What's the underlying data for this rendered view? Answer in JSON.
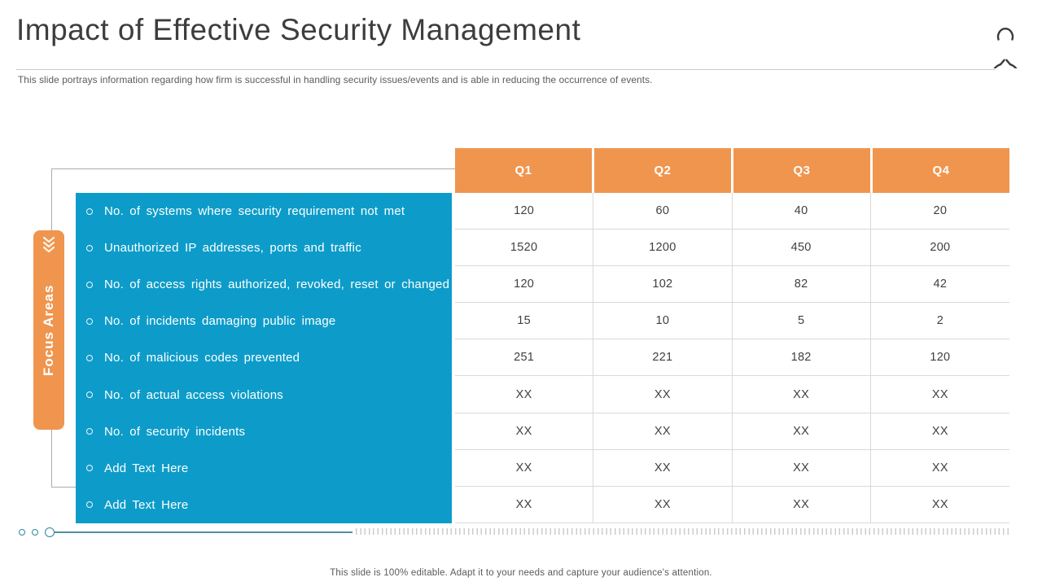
{
  "slide": {
    "title": "Impact of Effective Security Management",
    "subtitle": "This slide portrays information regarding how firm is successful in handling security issues/events and is able in reducing the occurrence of events.",
    "footer_note": "This slide is 100% editable. Adapt it to your needs and capture your audience's attention."
  },
  "focus_panel": {
    "tab_label": "Focus Areas"
  },
  "icons": {
    "top_right": "padlock-outline-icon",
    "tab_top": "triple-chevron-down-icon",
    "list_marker": "circle-outline-bullet"
  },
  "chart_data": {
    "type": "table",
    "row_group_label": "Focus Areas",
    "columns": [
      "Q1",
      "Q2",
      "Q3",
      "Q4"
    ],
    "rows": [
      {
        "label": "No. of systems where security requirement not met",
        "values": [
          "120",
          "60",
          "40",
          "20"
        ]
      },
      {
        "label": "Unauthorized IP addresses, ports and traffic",
        "values": [
          "1520",
          "1200",
          "450",
          "200"
        ]
      },
      {
        "label": "No. of access rights authorized, revoked, reset or changed",
        "values": [
          "120",
          "102",
          "82",
          "42"
        ]
      },
      {
        "label": "No. of incidents damaging public image",
        "values": [
          "15",
          "10",
          "5",
          "2"
        ]
      },
      {
        "label": "No. of malicious codes prevented",
        "values": [
          "251",
          "221",
          "182",
          "120"
        ]
      },
      {
        "label": "No. of actual access violations",
        "values": [
          "XX",
          "XX",
          "XX",
          "XX"
        ]
      },
      {
        "label": "No. of security incidents",
        "values": [
          "XX",
          "XX",
          "XX",
          "XX"
        ]
      },
      {
        "label": "Add Text Here",
        "values": [
          "XX",
          "XX",
          "XX",
          "XX"
        ]
      },
      {
        "label": "Add Text Here",
        "values": [
          "XX",
          "XX",
          "XX",
          "XX"
        ]
      }
    ]
  },
  "colors": {
    "accent_orange": "#F0954E",
    "accent_blue": "#0D9CC9",
    "teal_line": "#548EA6",
    "teal_circle": "#2B87A5",
    "title_text": "#3D3D3D",
    "muted_text": "#5A5A5A",
    "grid_border": "#D9D9D9"
  }
}
